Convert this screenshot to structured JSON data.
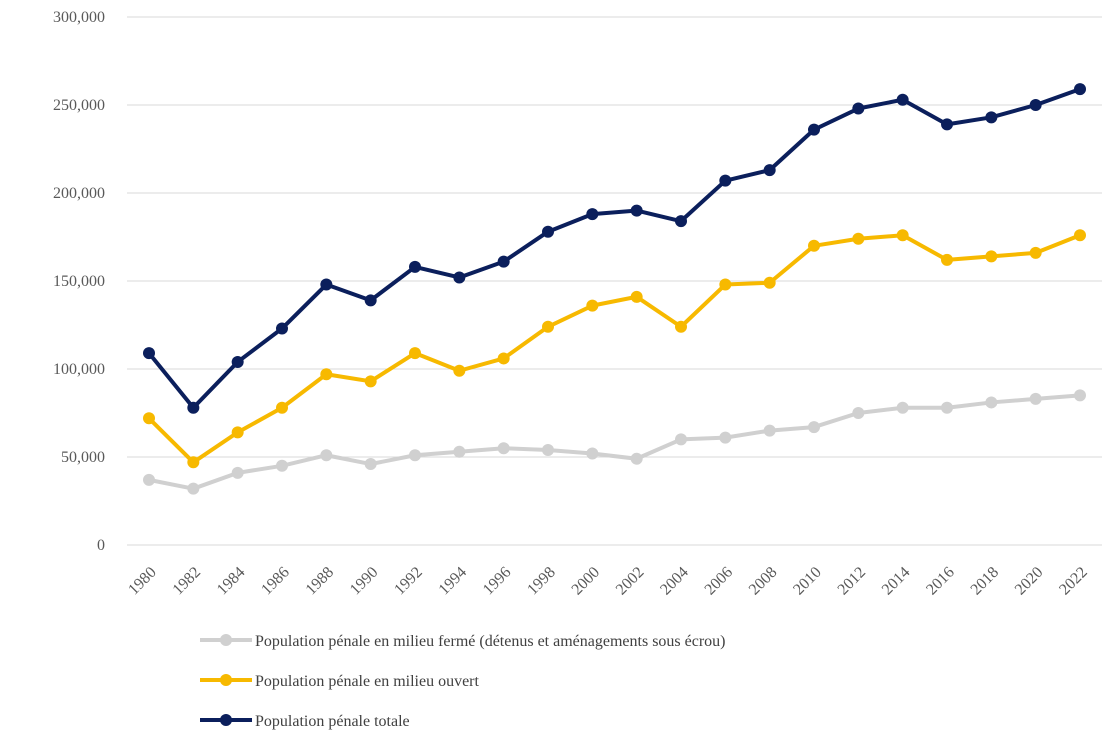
{
  "chart_data": {
    "type": "line",
    "categories": [
      "1980",
      "1982",
      "1984",
      "1986",
      "1988",
      "1990",
      "1992",
      "1994",
      "1996",
      "1998",
      "2000",
      "2002",
      "2004",
      "2006",
      "2008",
      "2010",
      "2012",
      "2014",
      "2016",
      "2018",
      "2020",
      "2022"
    ],
    "series": [
      {
        "name": "Population pénale en milieu fermé (détenus et aménagements sous écrou)",
        "color": "#d0d0d0",
        "values": [
          37000,
          32000,
          41000,
          45000,
          51000,
          46000,
          51000,
          53000,
          55000,
          54000,
          52000,
          49000,
          60000,
          61000,
          65000,
          67000,
          75000,
          78000,
          78000,
          81000,
          83000,
          85000
        ]
      },
      {
        "name": "Population pénale en milieu ouvert",
        "color": "#f7b900",
        "values": [
          72000,
          47000,
          64000,
          78000,
          97000,
          93000,
          109000,
          99000,
          106000,
          124000,
          136000,
          141000,
          124000,
          148000,
          149000,
          170000,
          174000,
          176000,
          162000,
          164000,
          166000,
          176000
        ]
      },
      {
        "name": "Population pénale totale",
        "color": "#0b1f5c",
        "values": [
          109000,
          78000,
          104000,
          123000,
          148000,
          139000,
          158000,
          152000,
          161000,
          178000,
          188000,
          190000,
          184000,
          207000,
          213000,
          236000,
          248000,
          253000,
          239000,
          243000,
          250000,
          259000
        ]
      }
    ],
    "ylim": [
      0,
      300000
    ],
    "yticks": [
      0,
      {
        "value": 50000,
        "label": "50,000"
      },
      {
        "value": 100000,
        "label": "100,000"
      },
      {
        "value": 150000,
        "label": "150,000"
      },
      {
        "value": 200000,
        "label": "200,000"
      },
      {
        "value": 250000,
        "label": "250,000"
      },
      {
        "value": 300000,
        "label": "300,000"
      }
    ],
    "grid": true,
    "legend": "bottom"
  }
}
